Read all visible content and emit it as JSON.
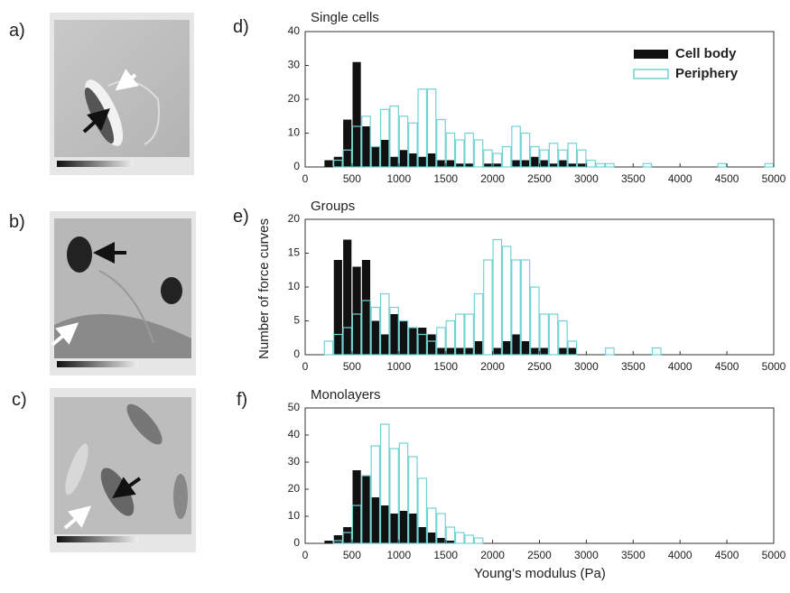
{
  "figure": {
    "ylabel": "Number of force curves",
    "xlabel": "Young's modulus (Pa)",
    "panel_labels": [
      "a)",
      "b)",
      "c)"
    ]
  },
  "chart_data": [
    {
      "type": "histogram",
      "label": "d)",
      "title": "Single cells",
      "bins": [
        200,
        300,
        400,
        500,
        600,
        700,
        800,
        900,
        1000,
        1100,
        1200,
        1300,
        1400,
        1500,
        1600,
        1700,
        1800,
        1900,
        2000,
        2100,
        2200,
        2300,
        2400,
        2500,
        2600,
        2700,
        2800,
        2900,
        3000,
        3100,
        3200,
        3300,
        3400,
        3500,
        3600,
        3700,
        3800,
        3900,
        4000,
        4100,
        4200,
        4300,
        4400,
        4500,
        4600,
        4700,
        4800,
        4900,
        5000
      ],
      "series": [
        {
          "name": "Cell body",
          "color": "#111111",
          "style": "filled",
          "values": [
            2,
            3,
            14,
            31,
            12,
            6,
            8,
            3,
            5,
            4,
            3,
            4,
            2,
            2,
            1,
            1,
            0,
            1,
            1,
            0,
            2,
            2,
            3,
            2,
            1,
            2,
            1,
            1,
            0,
            0,
            0,
            0,
            0,
            0,
            0,
            0,
            0,
            0,
            0,
            0,
            0,
            0,
            0,
            0,
            0,
            0,
            0,
            0
          ]
        },
        {
          "name": "Periphery",
          "color": "#72d2d2",
          "style": "outline",
          "values": [
            0,
            2,
            5,
            12,
            15,
            6,
            17,
            18,
            15,
            13,
            23,
            23,
            14,
            10,
            8,
            10,
            8,
            5,
            4,
            6,
            12,
            10,
            6,
            5,
            7,
            5,
            7,
            5,
            2,
            1,
            1,
            0,
            0,
            0,
            1,
            0,
            0,
            0,
            0,
            0,
            0,
            0,
            1,
            0,
            0,
            0,
            0,
            1
          ]
        }
      ],
      "legend": "upper right",
      "xlim": [
        0,
        5000
      ],
      "xticks": [
        0,
        500,
        1000,
        1500,
        2000,
        2500,
        3000,
        3500,
        4000,
        4500,
        5000
      ],
      "ylim": [
        0,
        40
      ],
      "yticks": [
        0,
        10,
        20,
        30,
        40
      ]
    },
    {
      "type": "histogram",
      "label": "e)",
      "title": "Groups",
      "bins": [
        200,
        300,
        400,
        500,
        600,
        700,
        800,
        900,
        1000,
        1100,
        1200,
        1300,
        1400,
        1500,
        1600,
        1700,
        1800,
        1900,
        2000,
        2100,
        2200,
        2300,
        2400,
        2500,
        2600,
        2700,
        2800,
        2900,
        3000,
        3100,
        3200,
        3300,
        3400,
        3500,
        3600,
        3700,
        3800
      ],
      "series": [
        {
          "color": "#111111",
          "style": "filled",
          "values": [
            0,
            14,
            17,
            13,
            14,
            5,
            3,
            6,
            5,
            4,
            4,
            3,
            1,
            1,
            1,
            1,
            2,
            0,
            1,
            2,
            3,
            2,
            1,
            1,
            0,
            1,
            1,
            0,
            0,
            0,
            0,
            0,
            0,
            0,
            0,
            0
          ]
        },
        {
          "color": "#72d2d2",
          "style": "outline",
          "values": [
            2,
            3,
            4,
            6,
            8,
            7,
            9,
            7,
            5,
            4,
            3,
            2,
            4,
            5,
            6,
            6,
            9,
            14,
            17,
            16,
            14,
            14,
            10,
            6,
            6,
            5,
            2,
            0,
            0,
            0,
            1,
            0,
            0,
            0,
            0,
            1
          ]
        }
      ],
      "xlim": [
        0,
        5000
      ],
      "xticks": [
        0,
        500,
        1000,
        1500,
        2000,
        2500,
        3000,
        3500,
        4000,
        4500,
        5000
      ],
      "ylim": [
        0,
        20
      ],
      "yticks": [
        0,
        5,
        10,
        15,
        20
      ]
    },
    {
      "type": "histogram",
      "label": "f)",
      "title": "Monolayers",
      "bins": [
        200,
        300,
        400,
        500,
        600,
        700,
        800,
        900,
        1000,
        1100,
        1200,
        1300,
        1400,
        1500,
        1600,
        1700,
        1800,
        1900,
        2000
      ],
      "series": [
        {
          "color": "#111111",
          "style": "filled",
          "values": [
            1,
            3,
            6,
            27,
            25,
            17,
            14,
            11,
            12,
            11,
            6,
            4,
            2,
            1,
            0,
            0,
            0,
            0
          ]
        },
        {
          "color": "#72d2d2",
          "style": "outline",
          "values": [
            0,
            1,
            4,
            14,
            25,
            36,
            44,
            35,
            37,
            32,
            24,
            13,
            11,
            6,
            4,
            3,
            2,
            0
          ]
        }
      ],
      "xlim": [
        0,
        5000
      ],
      "xticks": [
        0,
        500,
        1000,
        1500,
        2000,
        2500,
        3000,
        3500,
        4000,
        4500,
        5000
      ],
      "ylim": [
        0,
        50
      ],
      "yticks": [
        0,
        10,
        20,
        30,
        40,
        50
      ]
    }
  ]
}
